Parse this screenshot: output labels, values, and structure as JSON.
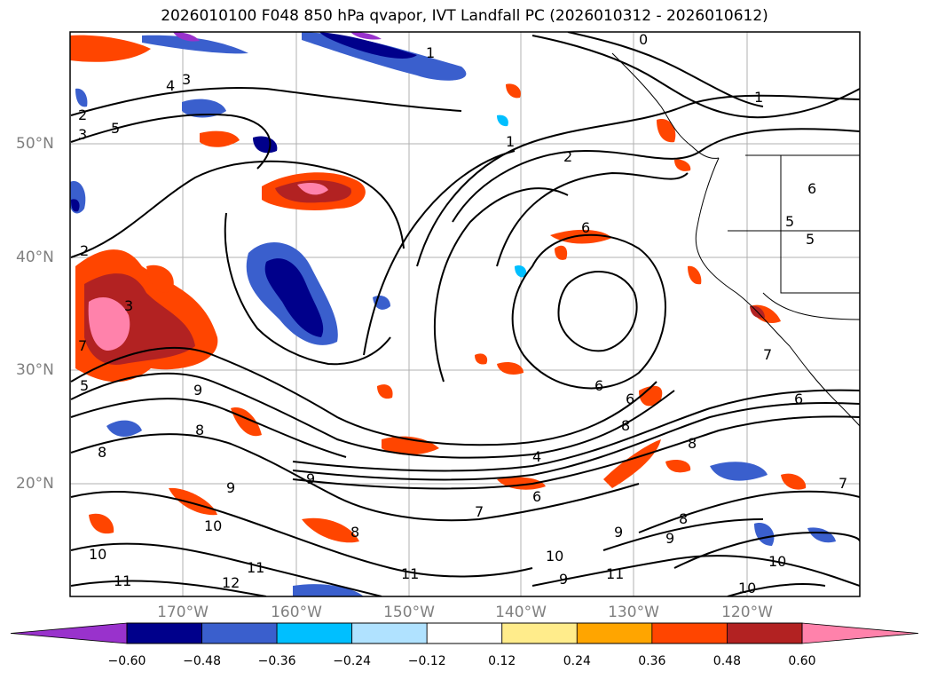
{
  "title": "2026010100 F048 850 hPa qvapor, IVT Landfall PC (2026010312 - 2026010612)",
  "lon_labels": [
    "170°W",
    "160°W",
    "150°W",
    "140°W",
    "130°W",
    "120°W"
  ],
  "lat_labels": [
    "50°N",
    "40°N",
    "30°N",
    "20°N"
  ],
  "colorbar": {
    "colors": [
      "#9932cc",
      "#00008b",
      "#3a5fcd",
      "#00bfff",
      "#b0e2ff",
      "#ffffff",
      "#ffec8b",
      "#ffa500",
      "#ff4500",
      "#b22222",
      "#ff82ab"
    ],
    "ticks": [
      "−0.60",
      "−0.48",
      "−0.36",
      "−0.24",
      "−0.12",
      "0.12",
      "0.24",
      "0.36",
      "0.48",
      "0.60"
    ]
  },
  "contour_labels": [
    "0",
    "1",
    "2",
    "3",
    "4",
    "5",
    "6",
    "7",
    "8",
    "9",
    "10",
    "11",
    "12"
  ]
}
